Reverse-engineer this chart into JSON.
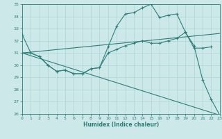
{
  "xlabel": "Humidex (Indice chaleur)",
  "bg_color": "#cce8e8",
  "grid_color": "#aad4d4",
  "line_color": "#2e7d7a",
  "xlim": [
    0,
    23
  ],
  "ylim": [
    26,
    35
  ],
  "yticks": [
    26,
    27,
    28,
    29,
    30,
    31,
    32,
    33,
    34,
    35
  ],
  "xticks": [
    0,
    1,
    2,
    3,
    4,
    5,
    6,
    7,
    8,
    9,
    10,
    11,
    12,
    13,
    14,
    15,
    16,
    17,
    18,
    19,
    20,
    21,
    22,
    23
  ],
  "curve_main": {
    "x": [
      0,
      1,
      2,
      3,
      4,
      5,
      6,
      7,
      8,
      9,
      10,
      11,
      12,
      13,
      14,
      15,
      16,
      17,
      18,
      19,
      20,
      21,
      22,
      23
    ],
    "y": [
      32.5,
      31.0,
      30.7,
      30.0,
      29.5,
      29.6,
      29.3,
      29.3,
      29.7,
      29.8,
      31.5,
      33.2,
      34.2,
      34.3,
      34.7,
      35.0,
      33.9,
      34.1,
      34.2,
      32.7,
      31.6,
      28.8,
      27.2,
      25.9
    ]
  },
  "curve_mid": {
    "x": [
      0,
      1,
      2,
      3,
      4,
      5,
      6,
      7,
      8,
      9,
      10,
      11,
      12,
      13,
      14,
      15,
      16,
      17,
      18,
      19,
      20,
      21,
      22
    ],
    "y": [
      31.0,
      31.0,
      30.7,
      30.0,
      29.5,
      29.6,
      29.3,
      29.3,
      29.7,
      29.8,
      31.0,
      31.3,
      31.6,
      31.8,
      32.0,
      31.8,
      31.8,
      32.0,
      32.2,
      32.7,
      31.4,
      31.4,
      31.5
    ]
  },
  "line_upper": {
    "x": [
      0,
      23
    ],
    "y": [
      31.0,
      32.6
    ]
  },
  "line_lower": {
    "x": [
      0,
      23
    ],
    "y": [
      31.0,
      25.9
    ]
  }
}
